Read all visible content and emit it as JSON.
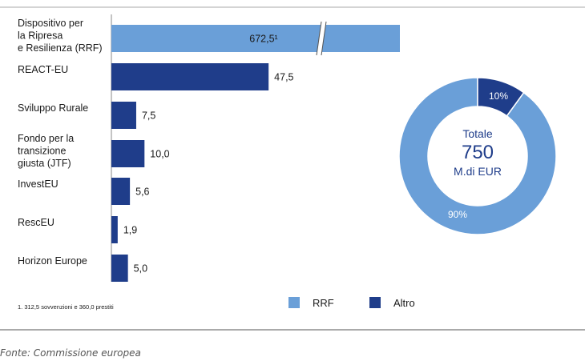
{
  "chart_data": [
    {
      "type": "bar",
      "orientation": "horizontal",
      "categories": [
        [
          "Dispositivo per",
          "la Ripresa",
          "e Resilienza (RRF)"
        ],
        [
          "REACT-EU"
        ],
        [
          "Sviluppo Rurale"
        ],
        [
          "Fondo per la",
          "transizione",
          "giusta (JTF)"
        ],
        [
          "InvestEU"
        ],
        [
          "RescEU"
        ],
        [
          "Horizon Europe"
        ]
      ],
      "values": [
        672.5,
        47.5,
        7.5,
        10.0,
        5.6,
        1.9,
        5.0
      ],
      "value_labels": [
        "672,5¹",
        "47,5",
        "7,5",
        "10,0",
        "5,6",
        "1,9",
        "5,0"
      ],
      "series_of_bar": [
        "RRF",
        "Altro",
        "Altro",
        "Altro",
        "Altro",
        "Altro",
        "Altro"
      ],
      "axis_break": true,
      "footnote": "1. 312,5 sovvenzioni e 360,0 prestiti"
    },
    {
      "type": "pie",
      "donut": true,
      "slices": [
        {
          "name": "RRF",
          "value": 90,
          "label": "90%"
        },
        {
          "name": "Altro",
          "value": 10,
          "label": "10%"
        }
      ],
      "center_text": [
        "Totale",
        "750",
        "M.di EUR"
      ]
    }
  ],
  "legend": [
    {
      "name": "RRF",
      "color": "#6a9fd8"
    },
    {
      "name": "Altro",
      "color": "#1f3d8a"
    }
  ],
  "colors": {
    "rrf": "#6a9fd8",
    "altro": "#1f3d8a"
  },
  "source": "Fonte: Commissione europea"
}
